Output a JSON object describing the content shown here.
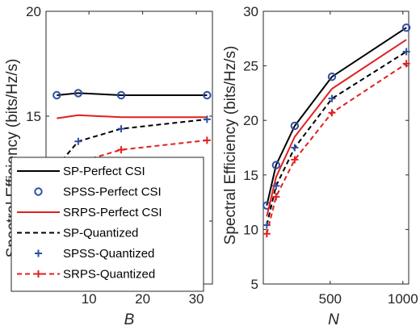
{
  "chart_data": [
    {
      "type": "line",
      "xlabel": "B",
      "ylabel": "Spectral Efficiency (bits/Hz/s)",
      "xlim": [
        2,
        33
      ],
      "ylim": [
        7,
        20
      ],
      "xticks": [
        10,
        20,
        30
      ],
      "yticks": [
        10,
        15,
        20
      ],
      "grid": false,
      "legend": "bottom-left",
      "series": [
        {
          "name": "SP-Perfect CSI",
          "color": "#000000",
          "style": "solid",
          "marker": "none",
          "x": [
            4,
            8,
            16,
            32
          ],
          "y": [
            16.0,
            16.1,
            16.0,
            16.0
          ]
        },
        {
          "name": "SPSS-Perfect CSI",
          "color": "#2F4FA2",
          "style": "none",
          "marker": "circle",
          "x": [
            4,
            8,
            16,
            32
          ],
          "y": [
            16.0,
            16.1,
            16.0,
            16.0
          ]
        },
        {
          "name": "SRPS-Perfect CSI",
          "color": "#E02020",
          "style": "solid",
          "marker": "none",
          "x": [
            4,
            8,
            16,
            32
          ],
          "y": [
            14.9,
            15.05,
            14.95,
            14.95
          ]
        },
        {
          "name": "SP-Quantized",
          "color": "#000000",
          "style": "dashed",
          "marker": "none",
          "x": [
            4,
            8,
            16,
            32
          ],
          "y": [
            12.6,
            13.8,
            14.4,
            14.85
          ]
        },
        {
          "name": "SPSS-Quantized",
          "color": "#2F4FA2",
          "style": "none",
          "marker": "plus",
          "x": [
            4,
            8,
            16,
            32
          ],
          "y": [
            12.6,
            13.8,
            14.4,
            14.85
          ]
        },
        {
          "name": "SRPS-Quantized",
          "color": "#E02020",
          "style": "dashed",
          "marker": "plus",
          "x": [
            4,
            8,
            16,
            32
          ],
          "y": [
            11.5,
            12.8,
            13.4,
            13.85
          ]
        }
      ]
    },
    {
      "type": "line",
      "xlabel": "N",
      "ylabel": "Spectral Efficiency (bits/Hz/s)",
      "xlim": [
        40,
        1040
      ],
      "ylim": [
        5,
        30
      ],
      "xticks": [
        500,
        1000
      ],
      "yticks": [
        5,
        10,
        15,
        20,
        25,
        30
      ],
      "grid": false,
      "series": [
        {
          "name": "SP-Perfect CSI",
          "color": "#000000",
          "style": "solid",
          "marker": "none",
          "x": [
            64,
            128,
            256,
            512,
            1024
          ],
          "y": [
            12.2,
            15.9,
            19.5,
            24.0,
            28.5
          ]
        },
        {
          "name": "SPSS-Perfect CSI",
          "color": "#2F4FA2",
          "style": "none",
          "marker": "circle",
          "x": [
            64,
            128,
            256,
            512,
            1024
          ],
          "y": [
            12.2,
            15.9,
            19.5,
            24.0,
            28.5
          ]
        },
        {
          "name": "SRPS-Perfect CSI",
          "color": "#E02020",
          "style": "solid",
          "marker": "none",
          "x": [
            64,
            128,
            256,
            512,
            1024
          ],
          "y": [
            11.2,
            14.8,
            18.5,
            22.9,
            27.4
          ]
        },
        {
          "name": "SP-Quantized",
          "color": "#000000",
          "style": "dashed",
          "marker": "none",
          "x": [
            64,
            128,
            256,
            512,
            1024
          ],
          "y": [
            10.4,
            14.0,
            17.5,
            22.0,
            26.3
          ]
        },
        {
          "name": "SPSS-Quantized",
          "color": "#2F4FA2",
          "style": "none",
          "marker": "plus",
          "x": [
            64,
            128,
            256,
            512,
            1024
          ],
          "y": [
            10.4,
            14.0,
            17.5,
            22.0,
            26.3
          ]
        },
        {
          "name": "SRPS-Quantized",
          "color": "#E02020",
          "style": "dashed",
          "marker": "plus",
          "x": [
            64,
            128,
            256,
            512,
            1024
          ],
          "y": [
            9.6,
            13.0,
            16.4,
            20.7,
            25.2
          ]
        }
      ]
    }
  ]
}
